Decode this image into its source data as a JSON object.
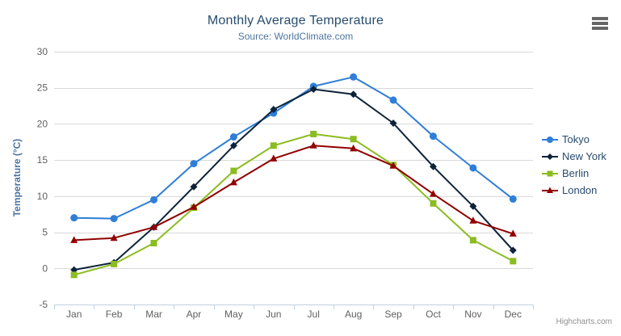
{
  "chart": {
    "title": "Monthly Average Temperature",
    "subtitle": "Source: WorldClimate.com",
    "credits": "Highcharts.com"
  },
  "chart_data": {
    "type": "line",
    "title": "Monthly Average Temperature",
    "subtitle": "Source: WorldClimate.com",
    "xlabel": "",
    "ylabel": "Temperature (°C)",
    "ylim": [
      -5,
      30
    ],
    "yticks": [
      -5,
      0,
      5,
      10,
      15,
      20,
      25,
      30
    ],
    "grid": true,
    "legend_position": "right",
    "categories": [
      "Jan",
      "Feb",
      "Mar",
      "Apr",
      "May",
      "Jun",
      "Jul",
      "Aug",
      "Sep",
      "Oct",
      "Nov",
      "Dec"
    ],
    "series": [
      {
        "name": "Tokyo",
        "marker": "circle",
        "color": "#2f7ed8",
        "values": [
          7.0,
          6.9,
          9.5,
          14.5,
          18.2,
          21.5,
          25.2,
          26.5,
          23.3,
          18.3,
          13.9,
          9.6
        ]
      },
      {
        "name": "New York",
        "marker": "diamond",
        "color": "#0d233a",
        "values": [
          -0.2,
          0.8,
          5.7,
          11.3,
          17.0,
          22.0,
          24.8,
          24.1,
          20.1,
          14.1,
          8.6,
          2.5
        ]
      },
      {
        "name": "Berlin",
        "marker": "square",
        "color": "#8bbc21",
        "values": [
          -0.9,
          0.6,
          3.5,
          8.4,
          13.5,
          17.0,
          18.6,
          17.9,
          14.3,
          9.0,
          3.9,
          1.0
        ]
      },
      {
        "name": "London",
        "marker": "triangle",
        "color": "#910000",
        "values": [
          3.9,
          4.2,
          5.7,
          8.5,
          11.9,
          15.2,
          17.0,
          16.6,
          14.2,
          10.3,
          6.6,
          4.8
        ]
      }
    ]
  },
  "colors": {
    "title": "#274b6d",
    "subtitle": "#4d759e",
    "axis_label": "#606060",
    "axis_title": "#4d759e",
    "grid_line": "#d8d8d8",
    "axis_line": "#c0d0e0",
    "legend_text": "#274b6d",
    "credits": "#909090",
    "menu_icon": "#666666"
  }
}
